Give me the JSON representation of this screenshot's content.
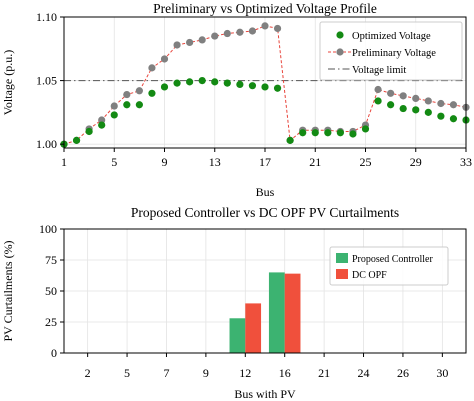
{
  "chart_data": [
    {
      "type": "line",
      "title": "Preliminary vs Optimized Voltage Profile",
      "xlabel": "Bus",
      "ylabel": "Voltage (p.u.)",
      "xlim": [
        1,
        33
      ],
      "ylim": [
        0.997,
        1.1
      ],
      "xticks": [
        1,
        5,
        9,
        13,
        17,
        21,
        25,
        29,
        33
      ],
      "yticks": [
        1.0,
        1.05,
        1.1
      ],
      "ytick_labels": [
        "1.00",
        "1.05",
        "1.10"
      ],
      "grid": true,
      "legend": "top-right",
      "x": [
        1,
        2,
        3,
        4,
        5,
        6,
        7,
        8,
        9,
        10,
        11,
        12,
        13,
        14,
        15,
        16,
        17,
        18,
        19,
        20,
        21,
        22,
        23,
        24,
        25,
        26,
        27,
        28,
        29,
        30,
        31,
        32,
        33
      ],
      "series": [
        {
          "name": "Optimized Voltage",
          "color": "#138a13",
          "marker": "circle",
          "line": "none",
          "values": [
            1.0,
            1.003,
            1.01,
            1.015,
            1.023,
            1.031,
            1.031,
            1.04,
            1.045,
            1.048,
            1.049,
            1.05,
            1.049,
            1.048,
            1.047,
            1.046,
            1.045,
            1.044,
            1.003,
            1.009,
            1.009,
            1.009,
            1.009,
            1.008,
            1.012,
            1.034,
            1.031,
            1.028,
            1.027,
            1.025,
            1.022,
            1.02,
            1.019
          ]
        },
        {
          "name": "Preliminary Voltage",
          "color": "#808080",
          "marker": "circle",
          "line": "dashed",
          "line_color": "#e8453c",
          "values": [
            1.0,
            1.003,
            1.012,
            1.019,
            1.03,
            1.039,
            1.042,
            1.06,
            1.067,
            1.078,
            1.08,
            1.082,
            1.085,
            1.087,
            1.088,
            1.089,
            1.093,
            1.091,
            1.003,
            1.011,
            1.011,
            1.011,
            1.01,
            1.01,
            1.015,
            1.043,
            1.04,
            1.038,
            1.036,
            1.034,
            1.032,
            1.031,
            1.029
          ]
        }
      ],
      "reference_lines": [
        {
          "name": "Voltage limit",
          "y": 1.05,
          "style": "dash-dot",
          "color": "#555555"
        }
      ]
    },
    {
      "type": "bar",
      "title": "Proposed Controller vs DC OPF PV Curtailments",
      "xlabel": "Bus with PV",
      "ylabel": "PV Curtailments (%)",
      "ylim": [
        0,
        100
      ],
      "yticks": [
        0,
        25,
        50,
        75,
        100
      ],
      "categories": [
        "2",
        "5",
        "7",
        "9",
        "12",
        "16",
        "21",
        "24",
        "26",
        "30"
      ],
      "grid": true,
      "legend": "top-right",
      "series": [
        {
          "name": "Proposed Controller",
          "color": "#3cb371",
          "values": [
            0,
            0,
            0,
            0,
            28,
            65,
            0,
            0,
            0,
            0
          ]
        },
        {
          "name": "DC OPF",
          "color": "#f0503c",
          "values": [
            0,
            0,
            0,
            0,
            40,
            64,
            0,
            0,
            0,
            0
          ]
        }
      ]
    }
  ]
}
